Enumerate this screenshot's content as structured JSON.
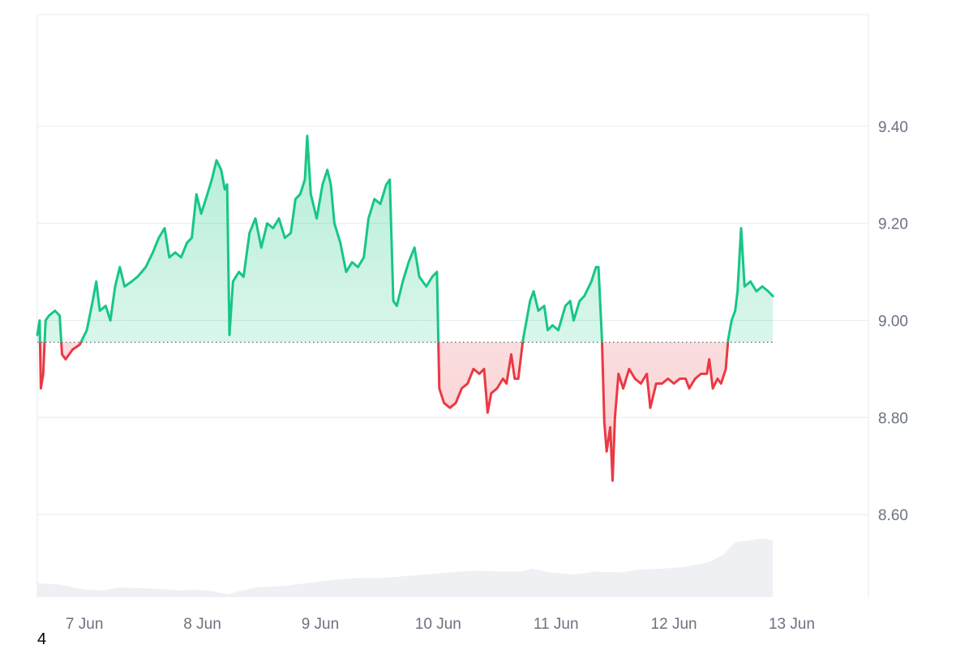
{
  "chart_data": {
    "type": "area",
    "baseline": 8.955,
    "ylim": [
      8.43,
      9.63
    ],
    "xlim": [
      0,
      7.05
    ],
    "y_ticks": [
      {
        "value": 9.4,
        "label": "9.40"
      },
      {
        "value": 9.2,
        "label": "9.20"
      },
      {
        "value": 9.0,
        "label": "9.00"
      },
      {
        "value": 8.8,
        "label": "8.80"
      },
      {
        "value": 8.6,
        "label": "8.60"
      }
    ],
    "x_ticks": [
      {
        "value": 0.4,
        "label": "7 Jun"
      },
      {
        "value": 1.4,
        "label": "8 Jun"
      },
      {
        "value": 2.4,
        "label": "9 Jun"
      },
      {
        "value": 3.4,
        "label": "10 Jun"
      },
      {
        "value": 4.4,
        "label": "11 Jun"
      },
      {
        "value": 5.4,
        "label": "12 Jun"
      },
      {
        "value": 6.4,
        "label": "13 Jun"
      }
    ],
    "grid": true,
    "colors": {
      "up": "#16c784",
      "down": "#ea3943",
      "grid": "#eceff3",
      "volume": "#eef0f3",
      "baseline": "#6b7280"
    },
    "price": [
      [
        0.0,
        8.97
      ],
      [
        0.02,
        9.0
      ],
      [
        0.03,
        8.86
      ],
      [
        0.05,
        8.89
      ],
      [
        0.07,
        9.0
      ],
      [
        0.1,
        9.01
      ],
      [
        0.15,
        9.02
      ],
      [
        0.19,
        9.01
      ],
      [
        0.21,
        8.93
      ],
      [
        0.24,
        8.92
      ],
      [
        0.3,
        8.94
      ],
      [
        0.36,
        8.95
      ],
      [
        0.42,
        8.98
      ],
      [
        0.47,
        9.04
      ],
      [
        0.5,
        9.08
      ],
      [
        0.53,
        9.02
      ],
      [
        0.58,
        9.03
      ],
      [
        0.62,
        9.0
      ],
      [
        0.66,
        9.07
      ],
      [
        0.7,
        9.11
      ],
      [
        0.74,
        9.07
      ],
      [
        0.8,
        9.08
      ],
      [
        0.85,
        9.09
      ],
      [
        0.92,
        9.11
      ],
      [
        0.98,
        9.14
      ],
      [
        1.03,
        9.17
      ],
      [
        1.08,
        9.19
      ],
      [
        1.12,
        9.13
      ],
      [
        1.17,
        9.14
      ],
      [
        1.22,
        9.13
      ],
      [
        1.27,
        9.16
      ],
      [
        1.31,
        9.17
      ],
      [
        1.35,
        9.26
      ],
      [
        1.39,
        9.22
      ],
      [
        1.43,
        9.25
      ],
      [
        1.48,
        9.29
      ],
      [
        1.52,
        9.33
      ],
      [
        1.56,
        9.31
      ],
      [
        1.59,
        9.27
      ],
      [
        1.61,
        9.28
      ],
      [
        1.63,
        8.97
      ],
      [
        1.66,
        9.08
      ],
      [
        1.71,
        9.1
      ],
      [
        1.75,
        9.09
      ],
      [
        1.8,
        9.18
      ],
      [
        1.85,
        9.21
      ],
      [
        1.9,
        9.15
      ],
      [
        1.95,
        9.2
      ],
      [
        2.0,
        9.19
      ],
      [
        2.05,
        9.21
      ],
      [
        2.1,
        9.17
      ],
      [
        2.15,
        9.18
      ],
      [
        2.19,
        9.25
      ],
      [
        2.23,
        9.26
      ],
      [
        2.27,
        9.29
      ],
      [
        2.29,
        9.38
      ],
      [
        2.32,
        9.26
      ],
      [
        2.37,
        9.21
      ],
      [
        2.42,
        9.28
      ],
      [
        2.46,
        9.31
      ],
      [
        2.49,
        9.28
      ],
      [
        2.52,
        9.2
      ],
      [
        2.57,
        9.16
      ],
      [
        2.62,
        9.1
      ],
      [
        2.67,
        9.12
      ],
      [
        2.72,
        9.11
      ],
      [
        2.77,
        9.13
      ],
      [
        2.81,
        9.21
      ],
      [
        2.86,
        9.25
      ],
      [
        2.91,
        9.24
      ],
      [
        2.96,
        9.28
      ],
      [
        2.99,
        9.29
      ],
      [
        3.02,
        9.04
      ],
      [
        3.05,
        9.03
      ],
      [
        3.1,
        9.08
      ],
      [
        3.15,
        9.12
      ],
      [
        3.2,
        9.15
      ],
      [
        3.24,
        9.09
      ],
      [
        3.3,
        9.07
      ],
      [
        3.35,
        9.09
      ],
      [
        3.39,
        9.1
      ],
      [
        3.41,
        8.86
      ],
      [
        3.45,
        8.83
      ],
      [
        3.5,
        8.82
      ],
      [
        3.55,
        8.83
      ],
      [
        3.6,
        8.86
      ],
      [
        3.65,
        8.87
      ],
      [
        3.7,
        8.9
      ],
      [
        3.75,
        8.89
      ],
      [
        3.79,
        8.9
      ],
      [
        3.82,
        8.81
      ],
      [
        3.85,
        8.85
      ],
      [
        3.9,
        8.86
      ],
      [
        3.95,
        8.88
      ],
      [
        3.98,
        8.87
      ],
      [
        4.02,
        8.93
      ],
      [
        4.05,
        8.88
      ],
      [
        4.08,
        8.88
      ],
      [
        4.12,
        8.96
      ],
      [
        4.15,
        9.0
      ],
      [
        4.18,
        9.04
      ],
      [
        4.21,
        9.06
      ],
      [
        4.25,
        9.02
      ],
      [
        4.3,
        9.03
      ],
      [
        4.33,
        8.98
      ],
      [
        4.37,
        8.99
      ],
      [
        4.42,
        8.98
      ],
      [
        4.48,
        9.03
      ],
      [
        4.52,
        9.04
      ],
      [
        4.55,
        9.0
      ],
      [
        4.6,
        9.04
      ],
      [
        4.64,
        9.05
      ],
      [
        4.7,
        9.08
      ],
      [
        4.74,
        9.11
      ],
      [
        4.76,
        9.11
      ],
      [
        4.79,
        8.96
      ],
      [
        4.81,
        8.79
      ],
      [
        4.83,
        8.73
      ],
      [
        4.86,
        8.78
      ],
      [
        4.88,
        8.67
      ],
      [
        4.9,
        8.8
      ],
      [
        4.93,
        8.89
      ],
      [
        4.97,
        8.86
      ],
      [
        5.02,
        8.9
      ],
      [
        5.07,
        8.88
      ],
      [
        5.12,
        8.87
      ],
      [
        5.17,
        8.89
      ],
      [
        5.2,
        8.82
      ],
      [
        5.25,
        8.87
      ],
      [
        5.3,
        8.87
      ],
      [
        5.35,
        8.88
      ],
      [
        5.4,
        8.87
      ],
      [
        5.45,
        8.88
      ],
      [
        5.5,
        8.88
      ],
      [
        5.53,
        8.86
      ],
      [
        5.58,
        8.88
      ],
      [
        5.63,
        8.89
      ],
      [
        5.68,
        8.89
      ],
      [
        5.7,
        8.92
      ],
      [
        5.73,
        8.86
      ],
      [
        5.77,
        8.88
      ],
      [
        5.8,
        8.87
      ],
      [
        5.84,
        8.9
      ],
      [
        5.86,
        8.96
      ],
      [
        5.89,
        9.0
      ],
      [
        5.92,
        9.02
      ],
      [
        5.94,
        9.06
      ],
      [
        5.97,
        9.19
      ],
      [
        6.0,
        9.07
      ],
      [
        6.05,
        9.08
      ],
      [
        6.1,
        9.06
      ],
      [
        6.15,
        9.07
      ],
      [
        6.2,
        9.06
      ],
      [
        6.24,
        9.05
      ]
    ],
    "volume": [
      [
        0.0,
        0.15
      ],
      [
        0.2,
        0.13
      ],
      [
        0.4,
        0.08
      ],
      [
        0.55,
        0.07
      ],
      [
        0.7,
        0.1
      ],
      [
        1.0,
        0.09
      ],
      [
        1.2,
        0.07
      ],
      [
        1.35,
        0.08
      ],
      [
        1.5,
        0.06
      ],
      [
        1.62,
        0.03
      ],
      [
        1.7,
        0.06
      ],
      [
        1.85,
        0.1
      ],
      [
        2.1,
        0.12
      ],
      [
        2.3,
        0.15
      ],
      [
        2.5,
        0.18
      ],
      [
        2.7,
        0.2
      ],
      [
        2.9,
        0.2
      ],
      [
        3.1,
        0.22
      ],
      [
        3.3,
        0.24
      ],
      [
        3.5,
        0.26
      ],
      [
        3.7,
        0.28
      ],
      [
        3.9,
        0.27
      ],
      [
        4.1,
        0.27
      ],
      [
        4.2,
        0.3
      ],
      [
        4.35,
        0.26
      ],
      [
        4.55,
        0.24
      ],
      [
        4.75,
        0.27
      ],
      [
        4.95,
        0.26
      ],
      [
        5.1,
        0.29
      ],
      [
        5.3,
        0.3
      ],
      [
        5.5,
        0.32
      ],
      [
        5.7,
        0.37
      ],
      [
        5.82,
        0.45
      ],
      [
        5.92,
        0.58
      ],
      [
        6.05,
        0.6
      ],
      [
        6.15,
        0.62
      ],
      [
        6.24,
        0.6
      ]
    ]
  },
  "footer": {
    "note": "4"
  }
}
